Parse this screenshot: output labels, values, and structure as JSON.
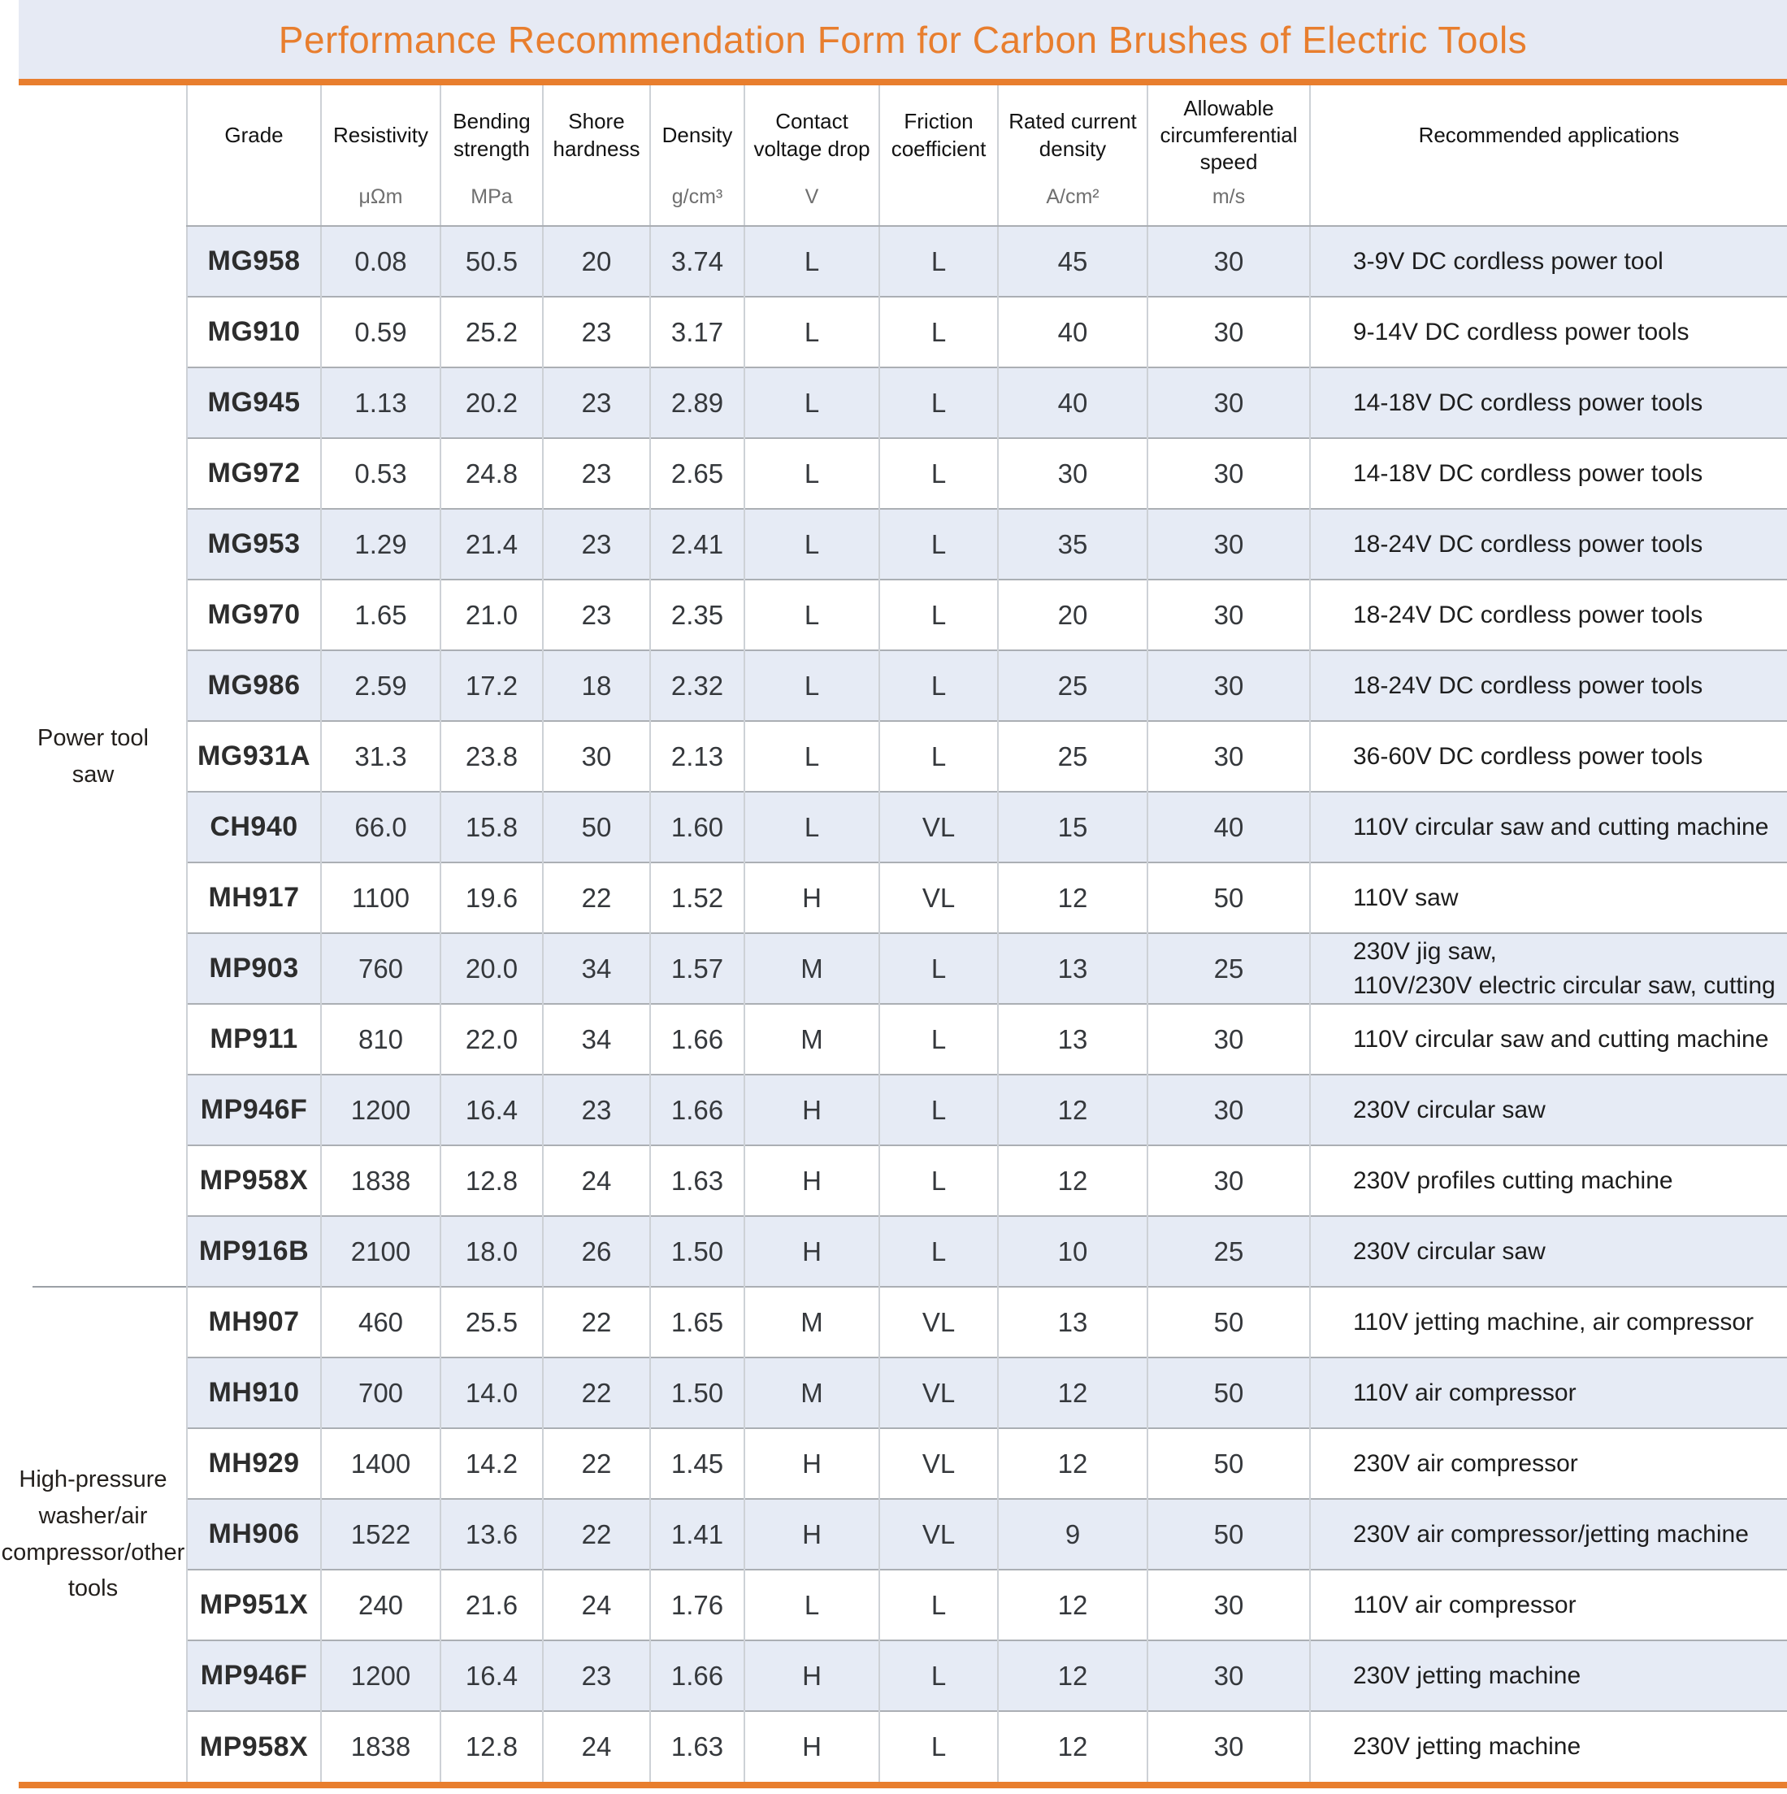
{
  "title": "Performance Recommendation Form for Carbon Brushes of Electric Tools",
  "colors": {
    "accent_orange": "#E87E2E",
    "banner_background": "#E6EAF4",
    "shaded_row_background": "#E6EBF5",
    "row_border": "#ABAFB4",
    "column_border": "#CDD1D6",
    "unit_text": "#6F6F6F"
  },
  "table": {
    "columns": [
      {
        "key": "grade",
        "label": [
          "Grade"
        ],
        "unit": ""
      },
      {
        "key": "resistivity",
        "label": [
          "Resistivity"
        ],
        "unit": "μΩm"
      },
      {
        "key": "bending_strength",
        "label": [
          "Bending",
          "strength"
        ],
        "unit": "MPa"
      },
      {
        "key": "shore_hardness",
        "label": [
          "Shore",
          "hardness"
        ],
        "unit": ""
      },
      {
        "key": "density",
        "label": [
          "Density"
        ],
        "unit": "g/cm³"
      },
      {
        "key": "contact_voltage_drop",
        "label": [
          "Contact",
          "voltage drop"
        ],
        "unit": "V"
      },
      {
        "key": "friction_coefficient",
        "label": [
          "Friction",
          "coefficient"
        ],
        "unit": ""
      },
      {
        "key": "rated_current_density",
        "label": [
          "Rated current",
          "density"
        ],
        "unit": "A/cm²"
      },
      {
        "key": "allowable_speed",
        "label": [
          "Allowable",
          "circumferential",
          "speed"
        ],
        "unit": "m/s"
      },
      {
        "key": "applications",
        "label": [
          "Recommended applications"
        ],
        "unit": ""
      }
    ],
    "groups": [
      {
        "label": "Power tool saw",
        "label_lines": [
          "Power tool",
          "saw"
        ],
        "rows": [
          {
            "grade": "MG958",
            "resistivity": "0.08",
            "bending_strength": "50.5",
            "shore_hardness": "20",
            "density": "3.74",
            "contact_voltage_drop": "L",
            "friction_coefficient": "L",
            "rated_current_density": "45",
            "allowable_speed": "30",
            "applications": [
              "3-9V DC cordless power tool"
            ]
          },
          {
            "grade": "MG910",
            "resistivity": "0.59",
            "bending_strength": "25.2",
            "shore_hardness": "23",
            "density": "3.17",
            "contact_voltage_drop": "L",
            "friction_coefficient": "L",
            "rated_current_density": "40",
            "allowable_speed": "30",
            "applications": [
              "9-14V DC cordless power tools"
            ]
          },
          {
            "grade": "MG945",
            "resistivity": "1.13",
            "bending_strength": "20.2",
            "shore_hardness": "23",
            "density": "2.89",
            "contact_voltage_drop": "L",
            "friction_coefficient": "L",
            "rated_current_density": "40",
            "allowable_speed": "30",
            "applications": [
              "14-18V DC cordless power tools"
            ]
          },
          {
            "grade": "MG972",
            "resistivity": "0.53",
            "bending_strength": "24.8",
            "shore_hardness": "23",
            "density": "2.65",
            "contact_voltage_drop": "L",
            "friction_coefficient": "L",
            "rated_current_density": "30",
            "allowable_speed": "30",
            "applications": [
              "14-18V DC cordless power tools"
            ]
          },
          {
            "grade": "MG953",
            "resistivity": "1.29",
            "bending_strength": "21.4",
            "shore_hardness": "23",
            "density": "2.41",
            "contact_voltage_drop": "L",
            "friction_coefficient": "L",
            "rated_current_density": "35",
            "allowable_speed": "30",
            "applications": [
              "18-24V DC cordless power tools"
            ]
          },
          {
            "grade": "MG970",
            "resistivity": "1.65",
            "bending_strength": "21.0",
            "shore_hardness": "23",
            "density": "2.35",
            "contact_voltage_drop": "L",
            "friction_coefficient": "L",
            "rated_current_density": "20",
            "allowable_speed": "30",
            "applications": [
              "18-24V DC cordless power tools"
            ]
          },
          {
            "grade": "MG986",
            "resistivity": "2.59",
            "bending_strength": "17.2",
            "shore_hardness": "18",
            "density": "2.32",
            "contact_voltage_drop": "L",
            "friction_coefficient": "L",
            "rated_current_density": "25",
            "allowable_speed": "30",
            "applications": [
              "18-24V DC cordless power tools"
            ]
          },
          {
            "grade": "MG931A",
            "resistivity": "31.3",
            "bending_strength": "23.8",
            "shore_hardness": "30",
            "density": "2.13",
            "contact_voltage_drop": "L",
            "friction_coefficient": "L",
            "rated_current_density": "25",
            "allowable_speed": "30",
            "applications": [
              "36-60V DC cordless power tools"
            ]
          },
          {
            "grade": "CH940",
            "resistivity": "66.0",
            "bending_strength": "15.8",
            "shore_hardness": "50",
            "density": "1.60",
            "contact_voltage_drop": "L",
            "friction_coefficient": "VL",
            "rated_current_density": "15",
            "allowable_speed": "40",
            "applications": [
              "110V circular saw and cutting machine"
            ]
          },
          {
            "grade": "MH917",
            "resistivity": "1100",
            "bending_strength": "19.6",
            "shore_hardness": "22",
            "density": "1.52",
            "contact_voltage_drop": "H",
            "friction_coefficient": "VL",
            "rated_current_density": "12",
            "allowable_speed": "50",
            "applications": [
              "110V saw"
            ]
          },
          {
            "grade": "MP903",
            "resistivity": "760",
            "bending_strength": "20.0",
            "shore_hardness": "34",
            "density": "1.57",
            "contact_voltage_drop": "M",
            "friction_coefficient": "L",
            "rated_current_density": "13",
            "allowable_speed": "25",
            "applications": [
              "230V jig saw,",
              "110V/230V electric circular saw, cutting"
            ]
          },
          {
            "grade": "MP911",
            "resistivity": "810",
            "bending_strength": "22.0",
            "shore_hardness": "34",
            "density": "1.66",
            "contact_voltage_drop": "M",
            "friction_coefficient": "L",
            "rated_current_density": "13",
            "allowable_speed": "30",
            "applications": [
              "110V circular saw and cutting machine"
            ]
          },
          {
            "grade": "MP946F",
            "resistivity": "1200",
            "bending_strength": "16.4",
            "shore_hardness": "23",
            "density": "1.66",
            "contact_voltage_drop": "H",
            "friction_coefficient": "L",
            "rated_current_density": "12",
            "allowable_speed": "30",
            "applications": [
              "230V circular saw"
            ]
          },
          {
            "grade": "MP958X",
            "resistivity": "1838",
            "bending_strength": "12.8",
            "shore_hardness": "24",
            "density": "1.63",
            "contact_voltage_drop": "H",
            "friction_coefficient": "L",
            "rated_current_density": "12",
            "allowable_speed": "30",
            "applications": [
              "230V profiles cutting machine"
            ]
          },
          {
            "grade": "MP916B",
            "resistivity": "2100",
            "bending_strength": "18.0",
            "shore_hardness": "26",
            "density": "1.50",
            "contact_voltage_drop": "H",
            "friction_coefficient": "L",
            "rated_current_density": "10",
            "allowable_speed": "25",
            "applications": [
              "230V circular saw"
            ]
          }
        ]
      },
      {
        "label": "High-pressure washer/air compressor/other tools",
        "label_lines": [
          "High-pressure",
          "washer/air",
          "compressor/other",
          "tools"
        ],
        "rows": [
          {
            "grade": "MH907",
            "resistivity": "460",
            "bending_strength": "25.5",
            "shore_hardness": "22",
            "density": "1.65",
            "contact_voltage_drop": "M",
            "friction_coefficient": "VL",
            "rated_current_density": "13",
            "allowable_speed": "50",
            "applications": [
              "110V jetting machine, air compressor"
            ]
          },
          {
            "grade": "MH910",
            "resistivity": "700",
            "bending_strength": "14.0",
            "shore_hardness": "22",
            "density": "1.50",
            "contact_voltage_drop": "M",
            "friction_coefficient": "VL",
            "rated_current_density": "12",
            "allowable_speed": "50",
            "applications": [
              "110V air compressor"
            ]
          },
          {
            "grade": "MH929",
            "resistivity": "1400",
            "bending_strength": "14.2",
            "shore_hardness": "22",
            "density": "1.45",
            "contact_voltage_drop": "H",
            "friction_coefficient": "VL",
            "rated_current_density": "12",
            "allowable_speed": "50",
            "applications": [
              "230V air compressor"
            ]
          },
          {
            "grade": "MH906",
            "resistivity": "1522",
            "bending_strength": "13.6",
            "shore_hardness": "22",
            "density": "1.41",
            "contact_voltage_drop": "H",
            "friction_coefficient": "VL",
            "rated_current_density": "9",
            "allowable_speed": "50",
            "applications": [
              "230V air compressor/jetting machine"
            ]
          },
          {
            "grade": "MP951X",
            "resistivity": "240",
            "bending_strength": "21.6",
            "shore_hardness": "24",
            "density": "1.76",
            "contact_voltage_drop": "L",
            "friction_coefficient": "L",
            "rated_current_density": "12",
            "allowable_speed": "30",
            "applications": [
              "110V air compressor"
            ]
          },
          {
            "grade": "MP946F",
            "resistivity": "1200",
            "bending_strength": "16.4",
            "shore_hardness": "23",
            "density": "1.66",
            "contact_voltage_drop": "H",
            "friction_coefficient": "L",
            "rated_current_density": "12",
            "allowable_speed": "30",
            "applications": [
              "230V jetting machine"
            ]
          },
          {
            "grade": "MP958X",
            "resistivity": "1838",
            "bending_strength": "12.8",
            "shore_hardness": "24",
            "density": "1.63",
            "contact_voltage_drop": "H",
            "friction_coefficient": "L",
            "rated_current_density": "12",
            "allowable_speed": "30",
            "applications": [
              "230V jetting machine"
            ]
          }
        ]
      }
    ]
  }
}
